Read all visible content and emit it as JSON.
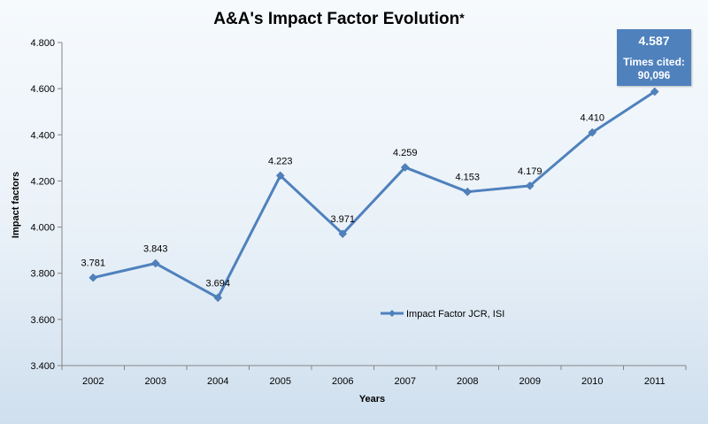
{
  "chart_data": {
    "type": "line",
    "title": "A&A's Impact Factor Evolution",
    "title_mark": "*",
    "xlabel": "Years",
    "ylabel": "Impact factors",
    "categories": [
      "2002",
      "2003",
      "2004",
      "2005",
      "2006",
      "2007",
      "2008",
      "2009",
      "2010",
      "2011"
    ],
    "series": [
      {
        "name": "Impact Factor JCR, ISI",
        "values": [
          3.781,
          3.843,
          3.694,
          4.223,
          3.971,
          4.259,
          4.153,
          4.179,
          4.41,
          4.587
        ],
        "labels": [
          "3.781",
          "3.843",
          "3.694",
          "4.223",
          "3.971",
          "4.259",
          "4.153",
          "4.179",
          "4.410",
          "4.587"
        ],
        "color": "#4f81bd"
      }
    ],
    "ylim": [
      3.4,
      4.8
    ],
    "yticks": [
      "3.400",
      "3.600",
      "3.800",
      "4.000",
      "4.200",
      "4.400",
      "4.600",
      "4.800"
    ],
    "grid": false,
    "legend_position": "center-right",
    "annotation": {
      "value": "4.587",
      "line1": "Times cited:",
      "line2": "90,096",
      "color": "#4f81bd"
    }
  }
}
